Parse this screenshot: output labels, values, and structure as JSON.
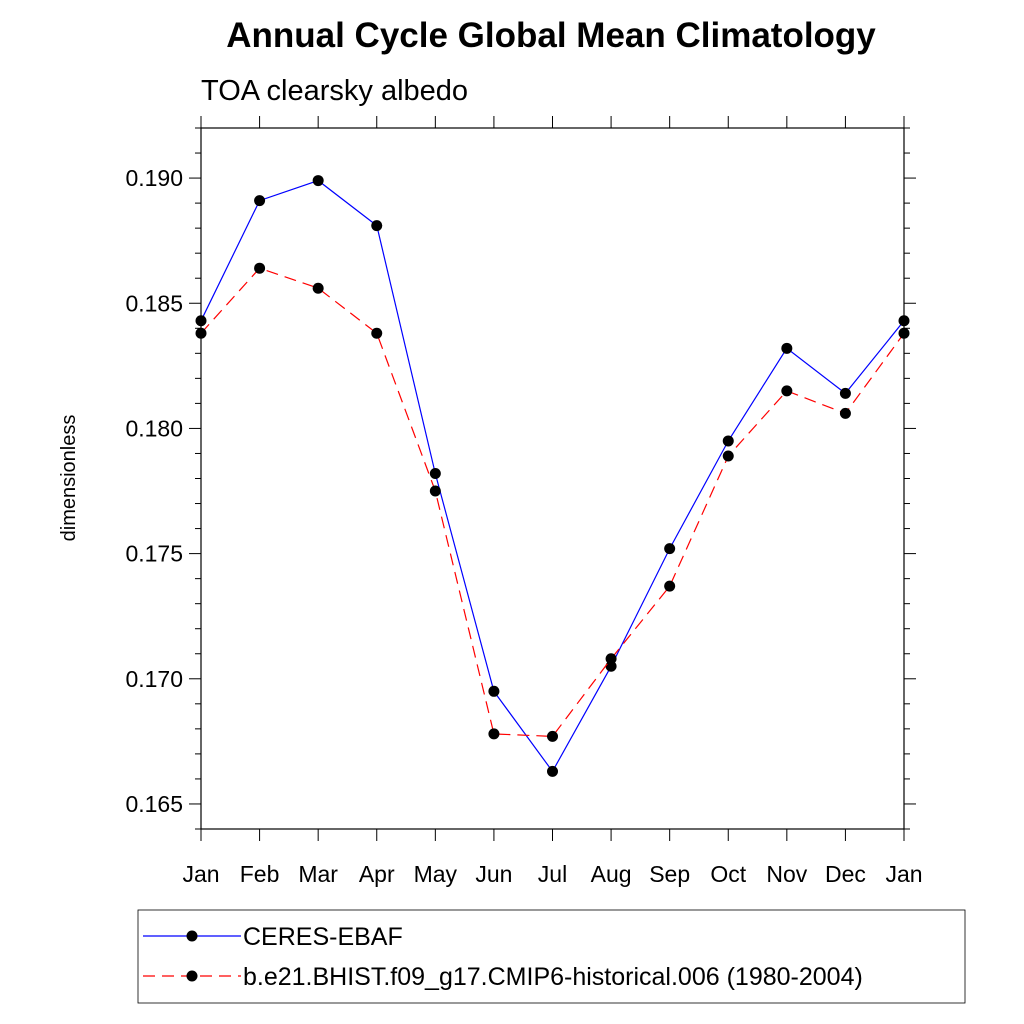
{
  "chart_data": {
    "type": "line",
    "title": "Annual Cycle Global Mean Climatology",
    "subtitle": "TOA clearsky albedo",
    "xlabel": "",
    "ylabel": "dimensionless",
    "categories": [
      "Jan",
      "Feb",
      "Mar",
      "Apr",
      "May",
      "Jun",
      "Jul",
      "Aug",
      "Sep",
      "Oct",
      "Nov",
      "Dec",
      "Jan"
    ],
    "ylim": [
      0.164,
      0.192
    ],
    "yticks": [
      "0.165",
      "0.170",
      "0.175",
      "0.180",
      "0.185",
      "0.190"
    ],
    "legend_position": "bottom",
    "grid": false,
    "series": [
      {
        "name": "CERES-EBAF",
        "color": "#0000ff",
        "line_style": "solid",
        "marker": "filled-circle",
        "values": [
          0.1843,
          0.1891,
          0.1899,
          0.1881,
          0.1782,
          0.1695,
          0.1663,
          0.1705,
          0.1752,
          0.1795,
          0.1832,
          0.1814,
          0.1843
        ]
      },
      {
        "name": "b.e21.BHIST.f09_g17.CMIP6-historical.006 (1980-2004)",
        "color": "#ff0000",
        "line_style": "dashed",
        "marker": "filled-circle",
        "values": [
          0.1838,
          0.1864,
          0.1856,
          0.1838,
          0.1775,
          0.1678,
          0.1677,
          0.1708,
          0.1737,
          0.1789,
          0.1815,
          0.1806,
          0.1838
        ]
      }
    ]
  }
}
